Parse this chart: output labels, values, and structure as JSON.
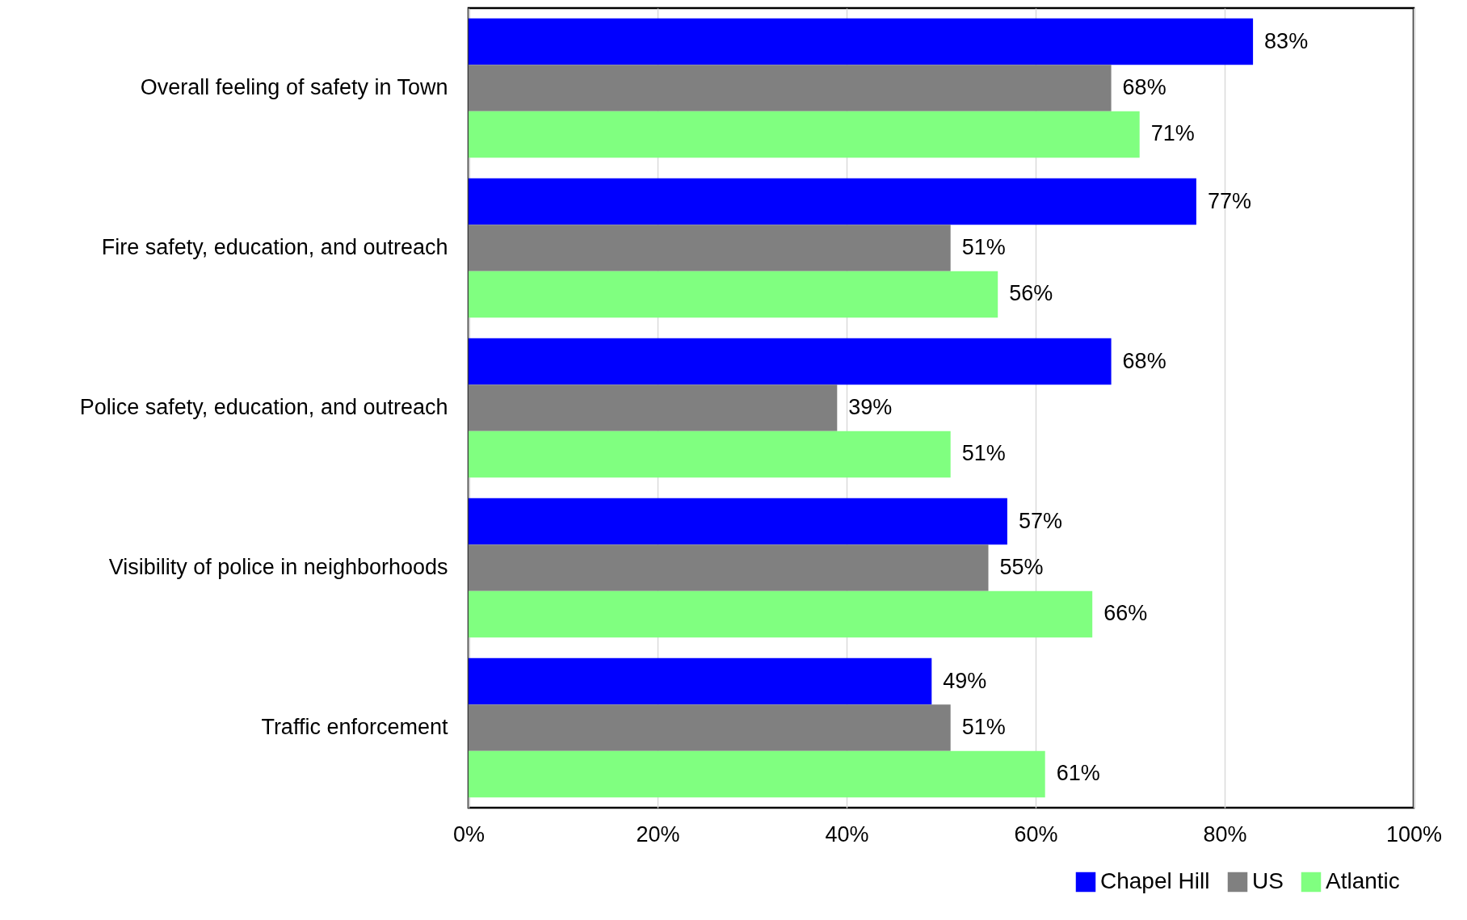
{
  "chart_data": {
    "type": "bar",
    "orientation": "horizontal",
    "categories": [
      "Overall feeling of safety in Town",
      "Fire safety, education, and outreach",
      "Police safety, education, and outreach",
      "Visibility of police in neighborhoods",
      "Traffic enforcement"
    ],
    "series": [
      {
        "name": "Chapel Hill",
        "color": "#0000ff",
        "values": [
          83,
          77,
          68,
          57,
          49
        ],
        "value_labels": [
          "83%",
          "77%",
          "68%",
          "57%",
          "49%"
        ]
      },
      {
        "name": "US",
        "color": "#808080",
        "values": [
          68,
          51,
          39,
          55,
          51
        ],
        "value_labels": [
          "68%",
          "51%",
          "39%",
          "55%",
          "51%"
        ]
      },
      {
        "name": "Atlantic",
        "color": "#80ff80",
        "values": [
          71,
          56,
          51,
          66,
          61
        ],
        "value_labels": [
          "71%",
          "56%",
          "51%",
          "66%",
          "61%"
        ]
      }
    ],
    "xlim": [
      0,
      100
    ],
    "xticks": [
      {
        "value": 0,
        "label": "0%"
      },
      {
        "value": 20,
        "label": "20%"
      },
      {
        "value": 40,
        "label": "40%"
      },
      {
        "value": 60,
        "label": "60%"
      },
      {
        "value": 80,
        "label": "80%"
      },
      {
        "value": 100,
        "label": "100%"
      }
    ],
    "grid": "x",
    "legend": "bottom right"
  }
}
